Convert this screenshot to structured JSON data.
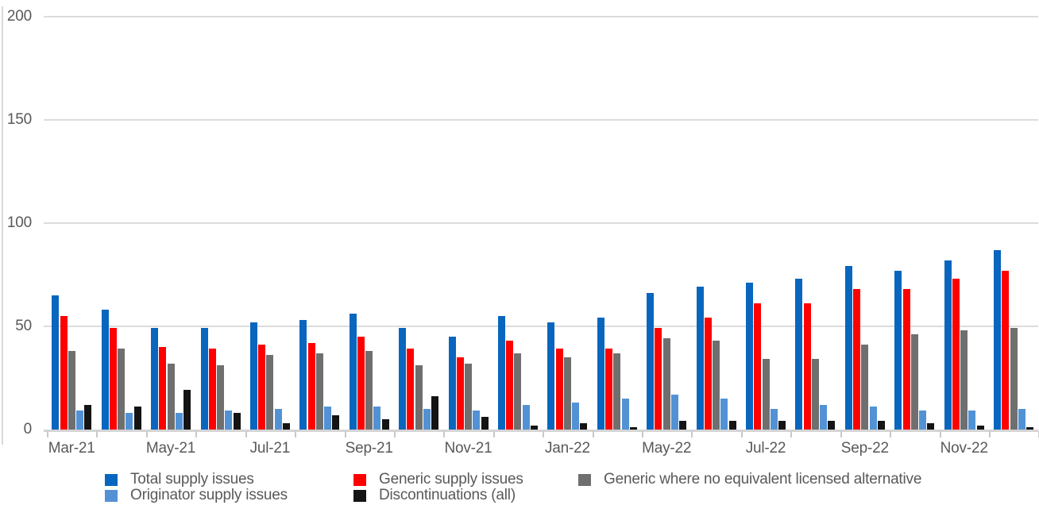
{
  "chart_data": {
    "type": "bar",
    "title": "",
    "y_axis": {
      "min": 0,
      "max": 200,
      "tick_values": [
        0,
        50,
        100,
        150,
        200
      ],
      "tick_labels": [
        "0",
        "50",
        "100",
        "150",
        "200"
      ],
      "gridlines": true
    },
    "x_axis": {
      "visible_tick_labels": [
        "Mar-21",
        "May-21",
        "Jul-21",
        "Sep-21",
        "Nov-21",
        "Jan-22",
        "May-22",
        "Jul-22",
        "Sep-22",
        "Nov-22"
      ],
      "label_interval": 2
    },
    "series": [
      {
        "name": "Total supply issues",
        "color": "#0866BE"
      },
      {
        "name": "Generic supply issues",
        "color": "#FF0000"
      },
      {
        "name": "Generic where no equivalent licensed alternative",
        "color": "#6F6F6F"
      },
      {
        "name": "Originator supply issues",
        "color": "#5292D4"
      },
      {
        "name": "Discontinuations (all)",
        "color": "#141414"
      }
    ],
    "legend": {
      "position": "bottom",
      "rows": [
        [
          0,
          1,
          2
        ],
        [
          3,
          4
        ]
      ]
    },
    "groups": [
      {
        "label": "Mar-21",
        "values": [
          65,
          55,
          38,
          9,
          12
        ]
      },
      {
        "label": "",
        "values": [
          58,
          49,
          39,
          8,
          11
        ]
      },
      {
        "label": "May-21",
        "values": [
          49,
          40,
          32,
          8,
          19
        ]
      },
      {
        "label": "",
        "values": [
          49,
          39,
          31,
          9,
          8
        ]
      },
      {
        "label": "Jul-21",
        "values": [
          52,
          41,
          36,
          10,
          3
        ]
      },
      {
        "label": "",
        "values": [
          53,
          42,
          37,
          11,
          7
        ]
      },
      {
        "label": "Sep-21",
        "values": [
          56,
          45,
          38,
          11,
          5
        ]
      },
      {
        "label": "",
        "values": [
          49,
          39,
          31,
          10,
          16
        ]
      },
      {
        "label": "Nov-21",
        "values": [
          45,
          35,
          32,
          9,
          6
        ]
      },
      {
        "label": "",
        "values": [
          55,
          43,
          37,
          12,
          2
        ]
      },
      {
        "label": "Jan-22",
        "values": [
          52,
          39,
          35,
          13,
          3
        ]
      },
      {
        "label": "",
        "values": [
          54,
          39,
          37,
          15,
          1
        ]
      },
      {
        "label": "May-22",
        "values": [
          66,
          49,
          44,
          17,
          4
        ]
      },
      {
        "label": "",
        "values": [
          69,
          54,
          43,
          15,
          4
        ]
      },
      {
        "label": "Jul-22",
        "values": [
          71,
          61,
          34,
          10,
          4
        ]
      },
      {
        "label": "",
        "values": [
          73,
          61,
          34,
          12,
          4
        ]
      },
      {
        "label": "Sep-22",
        "values": [
          79,
          68,
          41,
          11,
          4
        ]
      },
      {
        "label": "",
        "values": [
          77,
          68,
          46,
          9,
          3
        ]
      },
      {
        "label": "Nov-22",
        "values": [
          82,
          73,
          48,
          9,
          2
        ]
      },
      {
        "label": "",
        "values": [
          87,
          77,
          49,
          10,
          1
        ]
      }
    ]
  },
  "colors": {
    "axis_text": "#595959",
    "gridline": "#DCDCDC",
    "axis_line": "#D4D4D4",
    "tick": "#C9C9C9",
    "background": "#FFFFFF"
  }
}
